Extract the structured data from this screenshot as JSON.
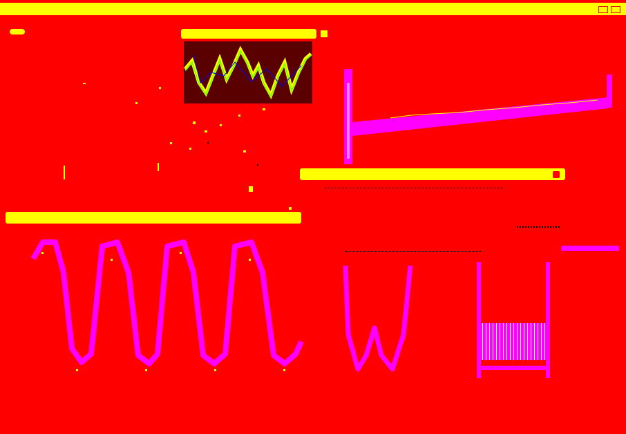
{
  "app": {
    "title": "",
    "status": ""
  },
  "windows": [
    {
      "id": "scope-window",
      "title": ""
    },
    {
      "id": "ramp-window",
      "title": ""
    },
    {
      "id": "wave-window",
      "title": ""
    },
    {
      "id": "controls-window",
      "title": ""
    }
  ],
  "colors": {
    "background": "#ff0000",
    "bars": "#ffff00",
    "trace_primary": "#ff00ff",
    "trace_scope": "#7fff00",
    "scope_bg": "#5a0000"
  },
  "icons": [
    "window-menu-icon",
    "close-icon",
    "arrow-up-icon",
    "dot-icon"
  ]
}
